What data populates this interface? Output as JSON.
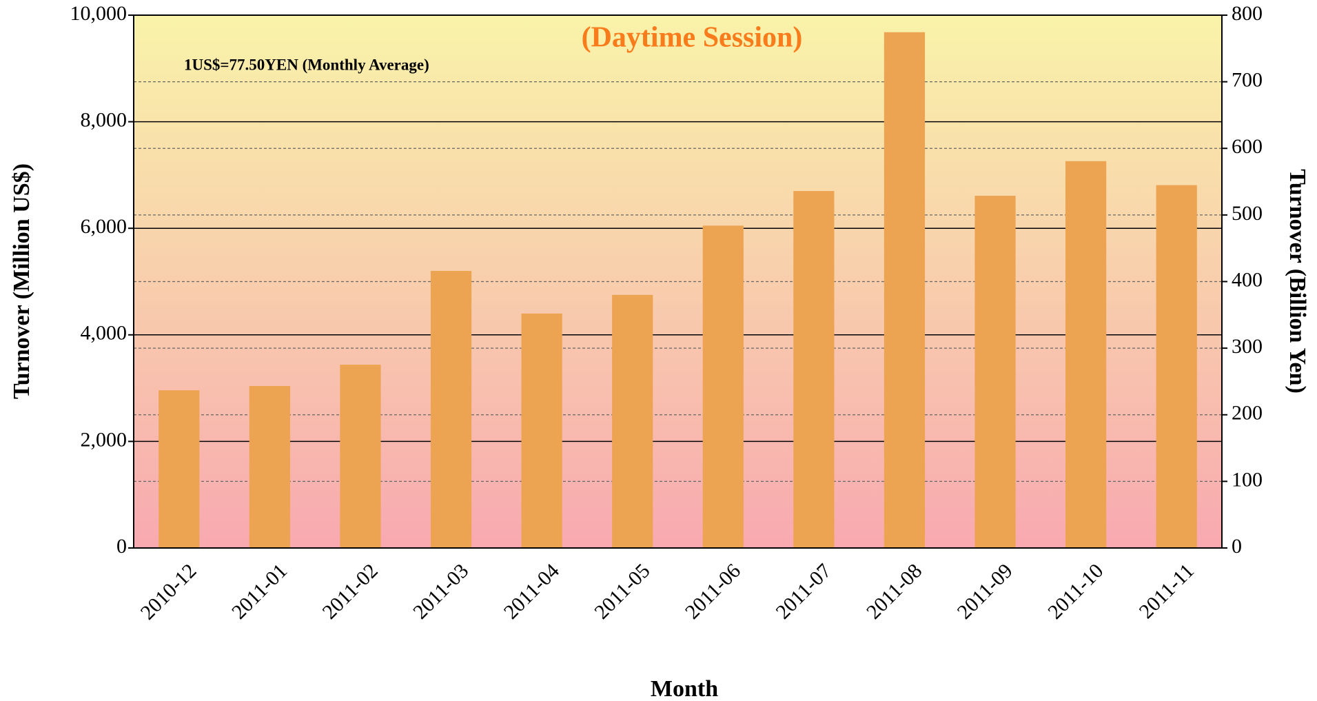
{
  "chart_data": {
    "type": "bar",
    "title": "(Daytime Session)",
    "annotation": "1US$=77.50YEN (Monthly Average)",
    "x_label": "Month",
    "y_label": "Turnover (Million US$)",
    "y2_label": "Turnover (Billion Yen)",
    "categories": [
      "2010-12",
      "2011-01",
      "2011-02",
      "2011-03",
      "2011-04",
      "2011-05",
      "2011-06",
      "2011-07",
      "2011-08",
      "2011-09",
      "2011-10",
      "2011-11"
    ],
    "values": [
      2960,
      3040,
      3440,
      5200,
      4400,
      4750,
      6050,
      6700,
      9680,
      6610,
      7260,
      6810
    ],
    "color": "#eda452",
    "ylim": [
      0,
      10000
    ],
    "yticks": [
      0,
      {
        "value": 2000,
        "label": "2,000"
      },
      {
        "value": 4000,
        "label": "4,000"
      },
      {
        "value": 6000,
        "label": "6,000"
      },
      {
        "value": 8000,
        "label": "8,000"
      },
      {
        "value": 10000,
        "label": "10,000"
      }
    ],
    "y2lim": [
      0,
      800
    ],
    "y2ticks": [
      0,
      100,
      200,
      300,
      400,
      500,
      600,
      700,
      800
    ],
    "grid": true
  }
}
